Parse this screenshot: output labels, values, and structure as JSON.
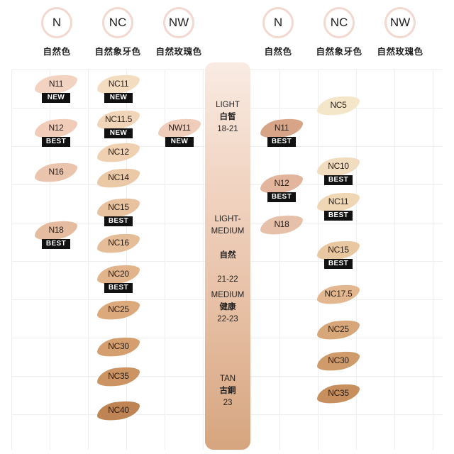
{
  "left_headers": [
    {
      "initial": "N",
      "label": "自然色"
    },
    {
      "initial": "NC",
      "label": "自然象牙色"
    },
    {
      "initial": "NW",
      "label": "自然玫瑰色"
    }
  ],
  "right_headers": [
    {
      "initial": "N",
      "label": "自然色"
    },
    {
      "initial": "NC",
      "label": "自然象牙色"
    },
    {
      "initial": "NW",
      "label": "自然玫瑰色"
    }
  ],
  "zones": [
    {
      "en": "LIGHT",
      "cn": "白皙",
      "range": "18-21"
    },
    {
      "en": "LIGHT-\nMEDIUM",
      "cn": "自然",
      "range": "21-22"
    },
    {
      "en": "MEDIUM",
      "cn": "健康",
      "range": "22-23"
    },
    {
      "en": "TAN",
      "cn": "古銅",
      "range": "23"
    }
  ],
  "left_N": [
    {
      "code": "N11",
      "badge": "NEW",
      "color": "#f2d3c2"
    },
    {
      "code": "N12",
      "badge": "BEST",
      "color": "#f0ccb9"
    },
    {
      "code": "N16",
      "badge": "",
      "color": "#eac4ac"
    },
    {
      "code": "N18",
      "badge": "BEST",
      "color": "#e6bca1"
    }
  ],
  "left_NC": [
    {
      "code": "NC11",
      "badge": "NEW",
      "color": "#f3dcc0"
    },
    {
      "code": "NC11.5",
      "badge": "NEW",
      "color": "#f0d5b8"
    },
    {
      "code": "NC12",
      "badge": "",
      "color": "#efd1b2"
    },
    {
      "code": "NC14",
      "badge": "",
      "color": "#ebc8a6"
    },
    {
      "code": "NC15",
      "badge": "BEST",
      "color": "#e8c29f"
    },
    {
      "code": "NC16",
      "badge": "",
      "color": "#e5bd98"
    },
    {
      "code": "NC20",
      "badge": "BEST",
      "color": "#e2b48b"
    },
    {
      "code": "NC25",
      "badge": "",
      "color": "#dba97b"
    },
    {
      "code": "NC30",
      "badge": "",
      "color": "#d49e6e"
    },
    {
      "code": "NC35",
      "badge": "",
      "color": "#cc9462"
    },
    {
      "code": "NC40",
      "badge": "",
      "color": "#bf8453"
    }
  ],
  "left_NW": [
    {
      "code": "NW11",
      "badge": "NEW",
      "color": "#f0cdbb"
    }
  ],
  "right_N": [
    {
      "code": "N11",
      "badge": "BEST",
      "color": "#d8a487"
    },
    {
      "code": "N12",
      "badge": "BEST",
      "color": "#e2b59c"
    },
    {
      "code": "N18",
      "badge": "",
      "color": "#e7c0a9"
    }
  ],
  "right_NC": [
    {
      "code": "NC5",
      "badge": "",
      "color": "#f4e6c8"
    },
    {
      "code": "NC10",
      "badge": "BEST",
      "color": "#f1dcc0"
    },
    {
      "code": "NC11",
      "badge": "BEST",
      "color": "#efd7b6"
    },
    {
      "code": "NC15",
      "badge": "BEST",
      "color": "#e9c7a1"
    },
    {
      "code": "NC17.5",
      "badge": "",
      "color": "#e3b890"
    },
    {
      "code": "NC25",
      "badge": "",
      "color": "#d8a779"
    },
    {
      "code": "NC30",
      "badge": "",
      "color": "#cf9b6a"
    },
    {
      "code": "NC35",
      "badge": "",
      "color": "#c78f5e"
    }
  ]
}
